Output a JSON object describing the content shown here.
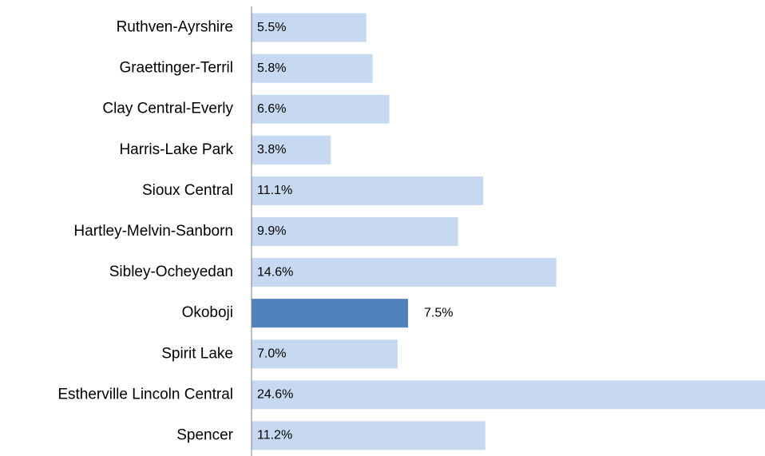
{
  "chart_data": {
    "type": "barh",
    "categories": [
      "Ruthven-Ayrshire",
      "Graettinger-Terril",
      "Clay Central-Everly",
      "Harris-Lake Park",
      "Sioux Central",
      "Hartley-Melvin-Sanborn",
      "Sibley-Ocheyedan",
      "Okoboji",
      "Spirit Lake",
      "Estherville Lincoln Central",
      "Spencer"
    ],
    "values": [
      5.5,
      5.8,
      6.6,
      3.8,
      11.1,
      9.9,
      14.6,
      7.5,
      7.0,
      24.6,
      11.2
    ],
    "value_labels": [
      "5.5%",
      "5.8%",
      "6.6%",
      "3.8%",
      "11.1%",
      "9.9%",
      "14.6%",
      "7.5%",
      "7.0%",
      "24.6%",
      "11.2%"
    ],
    "colors": [
      "#c6d9f1",
      "#c6d9f1",
      "#c6d9f1",
      "#c6d9f1",
      "#c6d9f1",
      "#c6d9f1",
      "#c6d9f1",
      "#4f81bd",
      "#c6d9f1",
      "#c6d9f1",
      "#c6d9f1"
    ]
  }
}
